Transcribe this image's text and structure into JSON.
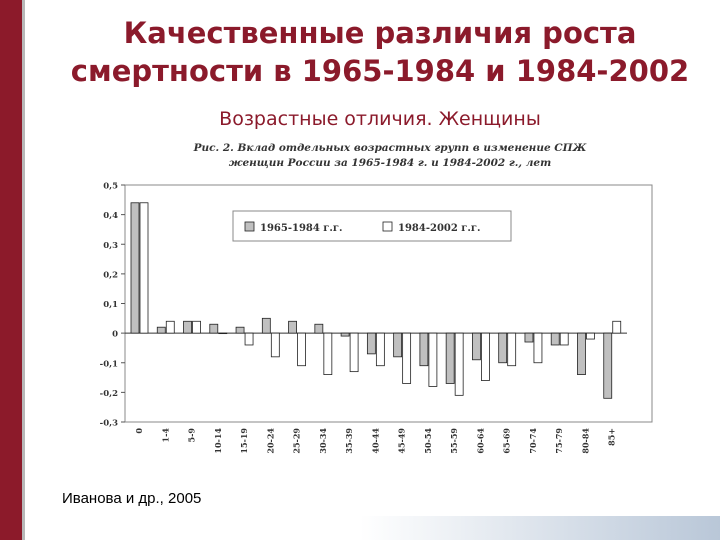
{
  "title_line1": "Качественные различия роста",
  "title_line2": "смертности в 1965-1984 и 1984-2002",
  "subtitle": "Возрастные отличия. Женщины",
  "footer": "Иванова и др., 2005",
  "colors": {
    "accent": "#8b1a2b",
    "series1": "#c0c0c0",
    "series2": "#ffffff"
  },
  "chart_data": {
    "type": "bar",
    "title_line1": "Рис. 2. Вклад отдельных возрастных групп в изменение СПЖ",
    "title_line2": "женщин России за 1965-1984 г. и 1984-2002 г., лет",
    "categories": [
      "0",
      "1-4",
      "5-9",
      "10-14",
      "15-19",
      "20-24",
      "25-29",
      "30-34",
      "35-39",
      "40-44",
      "45-49",
      "50-54",
      "55-59",
      "60-64",
      "65-69",
      "70-74",
      "75-79",
      "80-84",
      "85+"
    ],
    "series": [
      {
        "name": "1965-1984 г.г.",
        "values": [
          0.44,
          0.02,
          0.04,
          0.03,
          0.02,
          0.05,
          0.04,
          0.03,
          -0.01,
          -0.07,
          -0.08,
          -0.11,
          -0.17,
          -0.09,
          -0.1,
          -0.03,
          -0.04,
          -0.14,
          -0.22
        ]
      },
      {
        "name": "1984-2002 г.г.",
        "values": [
          0.44,
          0.04,
          0.04,
          0.0,
          -0.04,
          -0.08,
          -0.11,
          -0.14,
          -0.13,
          -0.11,
          -0.17,
          -0.18,
          -0.21,
          -0.16,
          -0.11,
          -0.1,
          -0.04,
          -0.02,
          0.04
        ]
      }
    ],
    "yticks": [
      "0,5",
      "0,4",
      "0,3",
      "0,2",
      "0,1",
      "0",
      "-0,1",
      "-0,2",
      "-0,3"
    ],
    "ylim": [
      -0.3,
      0.5
    ],
    "legend_position": "top",
    "grid": false
  }
}
